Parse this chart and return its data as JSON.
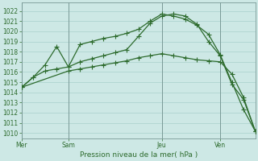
{
  "title": "Pression niveau de la mer( hPa )",
  "bg": "#cde8e5",
  "grid_color": "#a8d0cc",
  "lc": "#2d6b2d",
  "ylim": [
    1009.5,
    1022.8
  ],
  "xlim": [
    0,
    20
  ],
  "xtick_positions": [
    0,
    4,
    12,
    17
  ],
  "xtick_labels": [
    "Mer",
    "Sam",
    "Jeu",
    "Ven"
  ],
  "vlines": [
    0,
    4,
    12,
    17
  ],
  "s1x": [
    0,
    1,
    2,
    3,
    4,
    5,
    6,
    7,
    8,
    9,
    10,
    11,
    12,
    13,
    14,
    15,
    16,
    17,
    18,
    19,
    20
  ],
  "s1y": [
    1014.5,
    1015.5,
    1016.1,
    1016.3,
    1016.5,
    1017.0,
    1017.3,
    1017.6,
    1017.9,
    1018.2,
    1019.5,
    1020.8,
    1021.5,
    1021.7,
    1021.5,
    1020.7,
    1019.0,
    1017.6,
    1014.8,
    1013.3,
    1010.2
  ],
  "s2x": [
    0,
    1,
    2,
    3,
    4,
    5,
    6,
    7,
    8,
    9,
    10,
    11,
    12,
    13,
    14,
    15,
    16,
    17,
    18,
    19,
    20
  ],
  "s2y": [
    1014.5,
    1015.5,
    1016.7,
    1018.5,
    1016.5,
    1018.7,
    1019.0,
    1019.3,
    1019.5,
    1019.8,
    1020.2,
    1021.0,
    1021.7,
    1021.5,
    1021.2,
    1020.6,
    1019.7,
    1017.7,
    1015.0,
    1012.3,
    1010.2
  ],
  "s3x": [
    0,
    4,
    5,
    6,
    7,
    8,
    9,
    10,
    11,
    12,
    13,
    14,
    15,
    16,
    17,
    18,
    19,
    20
  ],
  "s3y": [
    1014.5,
    1016.1,
    1016.3,
    1016.5,
    1016.7,
    1016.9,
    1017.1,
    1017.4,
    1017.6,
    1017.8,
    1017.6,
    1017.4,
    1017.2,
    1017.1,
    1017.0,
    1015.8,
    1013.5,
    1010.2
  ],
  "title_fontsize": 6.5,
  "tick_fontsize": 5.5
}
